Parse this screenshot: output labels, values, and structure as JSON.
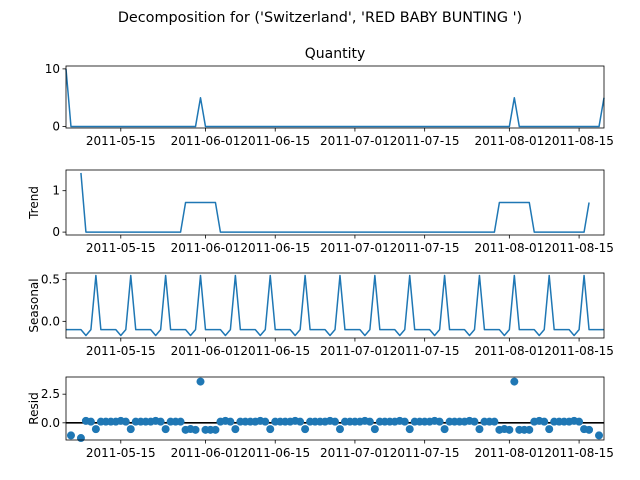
{
  "figure": {
    "suptitle": "Decomposition for ('Switzerland', 'RED BABY BUNTING ')"
  },
  "colors": {
    "line": "#1f77b4",
    "marker": "#1f77b4",
    "zero_line": "#000000"
  },
  "chart_data": [
    {
      "type": "line",
      "title": "Quantity",
      "ylabel": "",
      "xlim": [
        "2011-05-04",
        "2011-08-20"
      ],
      "ylim": [
        -0.25,
        10.5
      ],
      "yticks": [
        0,
        10
      ],
      "xticks": [
        "2011-05-15",
        "2011-06-01",
        "2011-06-15",
        "2011-07-01",
        "2011-07-15",
        "2011-08-01",
        "2011-08-15"
      ],
      "series": [
        {
          "x": [],
          "y": []
        }
      ]
    },
    {
      "type": "line",
      "title": "",
      "ylabel": "Trend",
      "xlim": [
        "2011-05-04",
        "2011-08-20"
      ],
      "ylim": [
        -0.07,
        1.5
      ],
      "yticks": [
        0,
        1
      ],
      "xticks": [
        "2011-05-15",
        "2011-06-01",
        "2011-06-15",
        "2011-07-01",
        "2011-07-15",
        "2011-08-01",
        "2011-08-15"
      ],
      "series": [
        {
          "x": [],
          "y": []
        }
      ]
    },
    {
      "type": "line",
      "title": "",
      "ylabel": "Seasonal",
      "xlim": [
        "2011-05-04",
        "2011-08-20"
      ],
      "ylim": [
        -0.2,
        0.58
      ],
      "yticks": [
        0.0,
        0.5
      ],
      "xticks": [
        "2011-05-15",
        "2011-06-01",
        "2011-06-15",
        "2011-07-01",
        "2011-07-15",
        "2011-08-01",
        "2011-08-15"
      ],
      "series": [
        {
          "x": [],
          "y": []
        }
      ]
    },
    {
      "type": "scatter",
      "title": "",
      "ylabel": "Resid",
      "xlim": [
        "2011-05-04",
        "2011-08-20"
      ],
      "ylim": [
        -1.5,
        4.0
      ],
      "yticks": [
        0.0,
        2.5
      ],
      "xticks": [
        "2011-05-15",
        "2011-06-01",
        "2011-06-15",
        "2011-07-01",
        "2011-07-15",
        "2011-08-01",
        "2011-08-15"
      ],
      "zero_line": true,
      "series": [
        {
          "x": [],
          "y": []
        }
      ]
    }
  ]
}
